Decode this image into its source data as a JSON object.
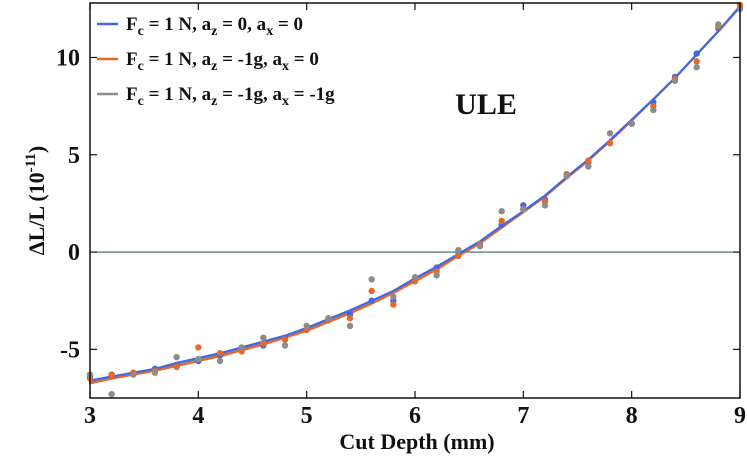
{
  "chart_data": {
    "type": "scatter",
    "title": "",
    "xlabel": "Cut Depth (mm)",
    "ylabel_parts": {
      "main": "ΔL/L (10",
      "exp": "-11",
      "end": ")"
    },
    "xlim": [
      3,
      9
    ],
    "ylim": [
      -7.5,
      12.8
    ],
    "xticks": [
      3,
      4,
      5,
      6,
      7,
      8,
      9
    ],
    "yticks": [
      -5,
      0,
      5,
      10
    ],
    "xtick_labels": [
      "3",
      "4",
      "5",
      "6",
      "7",
      "8",
      "9"
    ],
    "ytick_labels": [
      "-5",
      "0",
      "5",
      "10"
    ],
    "zero_line": 0,
    "annotation": "ULE",
    "grid": false,
    "legend_position": "top-left",
    "series": [
      {
        "legend_parts": [
          "F",
          "c",
          " = 1 N, a",
          "z",
          " = 0, a",
          "x",
          " = 0"
        ],
        "color": "#4169e1",
        "x": [
          3.0,
          3.2,
          3.4,
          3.6,
          3.8,
          4.0,
          4.2,
          4.4,
          4.6,
          4.8,
          5.0,
          5.2,
          5.4,
          5.6,
          5.8,
          6.0,
          6.2,
          6.4,
          6.6,
          6.8,
          7.0,
          7.2,
          7.4,
          7.6,
          7.8,
          8.0,
          8.2,
          8.4,
          8.6,
          8.8,
          9.0
        ],
        "y": [
          -6.4,
          -6.3,
          -6.2,
          -6.0,
          -5.8,
          -5.6,
          -5.3,
          -5.0,
          -4.8,
          -4.4,
          -4.0,
          -3.5,
          -3.2,
          -2.5,
          -2.5,
          -1.3,
          -0.8,
          0.0,
          0.4,
          1.4,
          2.4,
          2.7,
          4.0,
          4.6,
          5.6,
          6.6,
          7.7,
          9.0,
          10.2,
          11.5,
          12.6
        ],
        "fit": [
          -6.6,
          -6.4,
          -6.2,
          -6.0,
          -5.7,
          -5.45,
          -5.2,
          -4.9,
          -4.6,
          -4.3,
          -3.9,
          -3.45,
          -3.0,
          -2.5,
          -2.0,
          -1.35,
          -0.75,
          -0.1,
          0.55,
          1.35,
          2.1,
          2.9,
          3.85,
          4.75,
          5.75,
          6.8,
          7.85,
          8.95,
          10.15,
          11.35,
          12.6
        ]
      },
      {
        "legend_parts": [
          "F",
          "c",
          " = 1 N, a",
          "z",
          " = -1g, a",
          "x",
          " = 0"
        ],
        "color": "#e8682a",
        "x": [
          3.0,
          3.2,
          3.4,
          3.6,
          3.8,
          4.0,
          4.2,
          4.4,
          4.6,
          4.8,
          5.0,
          5.2,
          5.4,
          5.6,
          5.8,
          6.0,
          6.2,
          6.4,
          6.6,
          6.8,
          7.0,
          7.2,
          7.4,
          7.6,
          7.8,
          8.0,
          8.2,
          8.4,
          8.6,
          8.8,
          9.0
        ],
        "y": [
          -6.5,
          -6.3,
          -6.2,
          -6.1,
          -5.9,
          -4.9,
          -5.2,
          -5.1,
          -4.7,
          -4.5,
          -4.0,
          -3.5,
          -3.4,
          -2.0,
          -2.7,
          -1.5,
          -1.0,
          -0.2,
          0.4,
          1.6,
          2.2,
          2.6,
          4.0,
          4.7,
          5.6,
          6.6,
          7.5,
          8.9,
          9.8,
          11.6,
          12.7
        ],
        "fit": [
          -6.75,
          -6.5,
          -6.3,
          -6.1,
          -5.85,
          -5.6,
          -5.35,
          -5.05,
          -4.75,
          -4.4,
          -4.05,
          -3.6,
          -3.15,
          -2.65,
          -2.1,
          -1.5,
          -0.9,
          -0.2,
          0.45,
          1.25,
          2.05,
          2.85,
          3.8,
          4.7,
          5.7,
          6.75,
          7.85,
          8.95,
          10.15,
          11.35,
          12.65
        ]
      },
      {
        "legend_parts": [
          "F",
          "c",
          " = 1 N, a",
          "z",
          " = -1g, a",
          "x",
          " = -1g"
        ],
        "color": "#8c8c8c",
        "x": [
          3.0,
          3.2,
          3.4,
          3.6,
          3.8,
          4.0,
          4.2,
          4.4,
          4.6,
          4.8,
          5.0,
          5.2,
          5.4,
          5.6,
          5.8,
          6.0,
          6.2,
          6.4,
          6.6,
          6.8,
          7.0,
          7.2,
          7.4,
          7.6,
          7.8,
          8.0,
          8.2,
          8.4,
          8.6,
          8.8,
          9.0
        ],
        "y": [
          -6.3,
          -7.3,
          -6.3,
          -6.2,
          -5.4,
          -5.5,
          -5.6,
          -4.9,
          -4.4,
          -4.8,
          -3.8,
          -3.4,
          -3.8,
          -1.4,
          -2.3,
          -1.3,
          -1.2,
          0.1,
          0.3,
          2.1,
          2.2,
          2.4,
          3.9,
          4.4,
          6.1,
          6.6,
          7.3,
          8.8,
          9.5,
          11.7,
          12.5
        ],
        "fit": [
          -6.7,
          -6.45,
          -6.25,
          -6.05,
          -5.8,
          -5.55,
          -5.3,
          -5.0,
          -4.7,
          -4.35,
          -4.0,
          -3.55,
          -3.1,
          -2.6,
          -2.05,
          -1.45,
          -0.85,
          -0.15,
          0.5,
          1.3,
          2.1,
          2.9,
          3.85,
          4.75,
          5.75,
          6.8,
          7.85,
          8.95,
          10.15,
          11.35,
          12.6
        ]
      }
    ]
  }
}
